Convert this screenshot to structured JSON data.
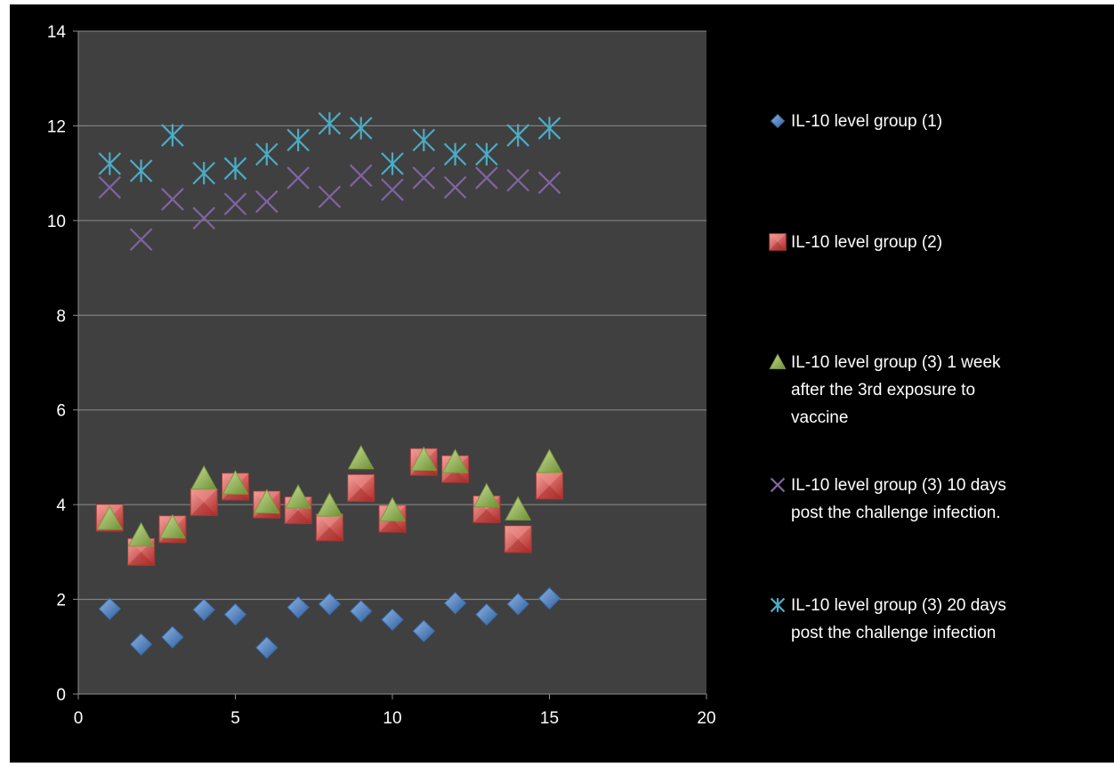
{
  "chart_data": {
    "type": "scatter",
    "title": "",
    "xlabel": "",
    "ylabel": "",
    "xlim": [
      0,
      20
    ],
    "ylim": [
      0,
      14
    ],
    "x_ticks": [
      "0",
      "5",
      "10",
      "15",
      "20"
    ],
    "y_ticks": [
      "0",
      "2",
      "4",
      "6",
      "8",
      "10",
      "12",
      "14"
    ],
    "grid": "horizontal",
    "legend_position": "right",
    "colors": {
      "background": "#000000",
      "plot_area": "#404040",
      "grid": "#8c8c8c",
      "text": "#ffffff"
    },
    "series": [
      {
        "name": "IL-10 level group (1)",
        "legend_lines": [
          "IL-10 level group (1)"
        ],
        "marker": "diamond",
        "color": "#4f81bd",
        "x": [
          1,
          2,
          3,
          4,
          5,
          6,
          7,
          8,
          9,
          10,
          11,
          12,
          13,
          14,
          15
        ],
        "y": [
          1.8,
          1.05,
          1.2,
          1.78,
          1.68,
          0.98,
          1.83,
          1.9,
          1.75,
          1.57,
          1.33,
          1.92,
          1.68,
          1.9,
          2.02
        ]
      },
      {
        "name": "IL-10 level group (2)",
        "legend_lines": [
          "IL-10 level group (2)"
        ],
        "marker": "square",
        "color": "#d9413e",
        "x": [
          1,
          2,
          3,
          4,
          5,
          6,
          7,
          8,
          9,
          10,
          11,
          12,
          13,
          14,
          15
        ],
        "y": [
          3.72,
          3.0,
          3.48,
          4.05,
          4.38,
          4.0,
          3.88,
          3.52,
          4.35,
          3.7,
          4.9,
          4.75,
          3.9,
          3.27,
          4.4
        ]
      },
      {
        "name": "IL-10 level group (3) 1 week after the 3rd exposure to vaccine",
        "legend_lines": [
          "IL-10 level group (3) 1 week",
          "after the 3rd exposure to",
          "vaccine"
        ],
        "marker": "triangle",
        "color": "#9bbb59",
        "x": [
          1,
          2,
          3,
          4,
          5,
          6,
          7,
          8,
          9,
          10,
          11,
          12,
          13,
          14,
          15
        ],
        "y": [
          3.7,
          3.35,
          3.52,
          4.55,
          4.45,
          4.05,
          4.15,
          3.98,
          4.98,
          3.88,
          4.95,
          4.9,
          4.18,
          3.9,
          4.9
        ]
      },
      {
        "name": "IL-10 level group (3) 10 days post the challenge infection.",
        "legend_lines": [
          "IL-10 level group (3) 10 days",
          "post the challenge infection."
        ],
        "marker": "x",
        "color": "#8064a2",
        "x": [
          1,
          2,
          3,
          4,
          5,
          6,
          7,
          8,
          9,
          10,
          11,
          12,
          13,
          14,
          15
        ],
        "y": [
          10.7,
          9.6,
          10.45,
          10.05,
          10.35,
          10.4,
          10.9,
          10.5,
          10.95,
          10.65,
          10.9,
          10.7,
          10.9,
          10.85,
          10.8
        ]
      },
      {
        "name": "IL-10 level group (3) 20 days post the challenge infection",
        "legend_lines": [
          "IL-10 level group (3) 20 days",
          "post the challenge infection"
        ],
        "marker": "asterisk",
        "color": "#4bacc6",
        "x": [
          1,
          2,
          3,
          4,
          5,
          6,
          7,
          8,
          9,
          10,
          11,
          12,
          13,
          14,
          15
        ],
        "y": [
          11.2,
          11.05,
          11.8,
          11.0,
          11.1,
          11.4,
          11.7,
          12.05,
          11.95,
          11.2,
          11.7,
          11.4,
          11.4,
          11.8,
          11.95
        ]
      }
    ]
  }
}
